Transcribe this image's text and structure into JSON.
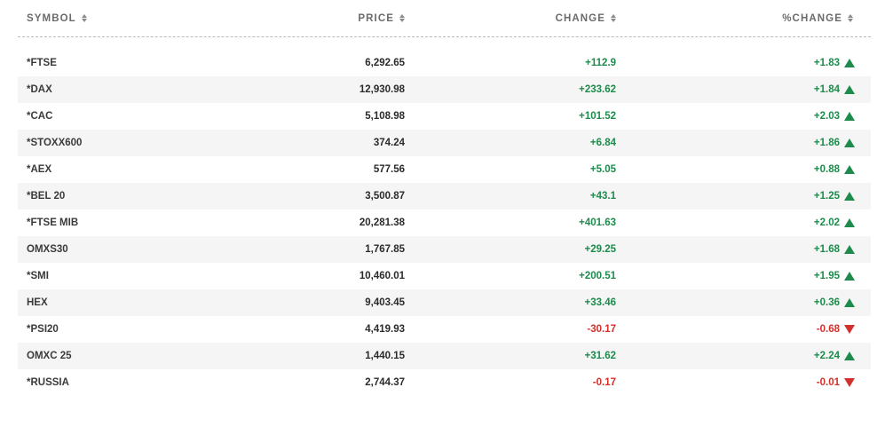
{
  "header": {
    "symbol": "SYMBOL",
    "price": "PRICE",
    "change": "CHANGE",
    "pct_change": "%CHANGE"
  },
  "colors": {
    "up": "#1e8a4c",
    "down": "#d0312d"
  },
  "rows": [
    {
      "symbol": "*FTSE",
      "price": "6,292.65",
      "change": "+112.9",
      "pct": "+1.83",
      "dir": "up"
    },
    {
      "symbol": "*DAX",
      "price": "12,930.98",
      "change": "+233.62",
      "pct": "+1.84",
      "dir": "up"
    },
    {
      "symbol": "*CAC",
      "price": "5,108.98",
      "change": "+101.52",
      "pct": "+2.03",
      "dir": "up"
    },
    {
      "symbol": "*STOXX600",
      "price": "374.24",
      "change": "+6.84",
      "pct": "+1.86",
      "dir": "up"
    },
    {
      "symbol": "*AEX",
      "price": "577.56",
      "change": "+5.05",
      "pct": "+0.88",
      "dir": "up"
    },
    {
      "symbol": "*BEL 20",
      "price": "3,500.87",
      "change": "+43.1",
      "pct": "+1.25",
      "dir": "up"
    },
    {
      "symbol": "*FTSE MIB",
      "price": "20,281.38",
      "change": "+401.63",
      "pct": "+2.02",
      "dir": "up"
    },
    {
      "symbol": "OMXS30",
      "price": "1,767.85",
      "change": "+29.25",
      "pct": "+1.68",
      "dir": "up"
    },
    {
      "symbol": "*SMI",
      "price": "10,460.01",
      "change": "+200.51",
      "pct": "+1.95",
      "dir": "up"
    },
    {
      "symbol": "HEX",
      "price": "9,403.45",
      "change": "+33.46",
      "pct": "+0.36",
      "dir": "up"
    },
    {
      "symbol": "*PSI20",
      "price": "4,419.93",
      "change": "-30.17",
      "pct": "-0.68",
      "dir": "down"
    },
    {
      "symbol": "OMXC 25",
      "price": "1,440.15",
      "change": "+31.62",
      "pct": "+2.24",
      "dir": "up"
    },
    {
      "symbol": "*RUSSIA",
      "price": "2,744.37",
      "change": "-0.17",
      "pct": "-0.01",
      "dir": "down"
    }
  ]
}
